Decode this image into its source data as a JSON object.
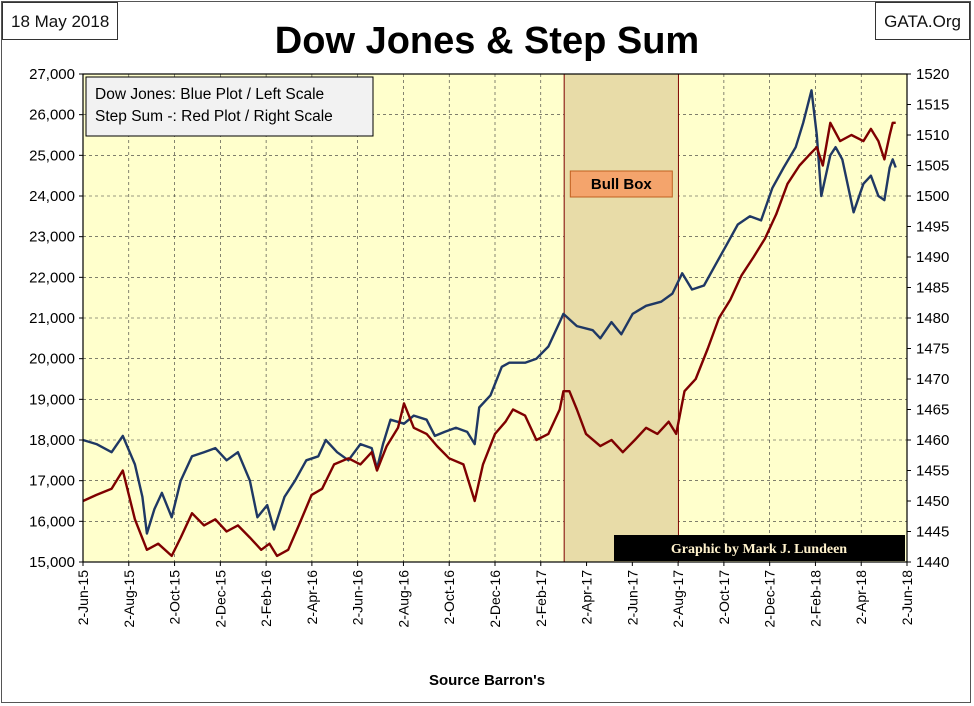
{
  "header": {
    "date": "18 May 2018",
    "source": "GATA.Org"
  },
  "chart_data": {
    "type": "line",
    "title": "Dow Jones & Step Sum",
    "xlabel": "Source Barron's",
    "ylabel_left": "",
    "ylabel_right": "",
    "legend_lines": [
      "Dow Jones: Blue Plot / Left Scale",
      "Step Sum -: Red Plot / Right Scale"
    ],
    "legend_position": "top-left",
    "grid": true,
    "background_color": "#FFFFCC",
    "x_tick_labels": [
      "2-Jun-15",
      "2-Aug-15",
      "2-Oct-15",
      "2-Dec-15",
      "2-Feb-16",
      "2-Apr-16",
      "2-Jun-16",
      "2-Aug-16",
      "2-Oct-16",
      "2-Dec-16",
      "2-Feb-17",
      "2-Apr-17",
      "2-Jun-17",
      "2-Aug-17",
      "2-Oct-17",
      "2-Dec-17",
      "2-Feb-18",
      "2-Apr-18",
      "2-Jun-18"
    ],
    "left_axis": {
      "range": [
        15000,
        27000
      ],
      "ticks": [
        "15,000",
        "16,000",
        "17,000",
        "18,000",
        "19,000",
        "20,000",
        "21,000",
        "22,000",
        "23,000",
        "24,000",
        "25,000",
        "26,000",
        "27,000"
      ]
    },
    "right_axis": {
      "range": [
        1440,
        1520
      ],
      "ticks": [
        "1440",
        "1445",
        "1450",
        "1455",
        "1460",
        "1465",
        "1470",
        "1475",
        "1480",
        "1485",
        "1490",
        "1495",
        "1500",
        "1505",
        "1510",
        "1515",
        "1520"
      ]
    },
    "series": [
      {
        "name": "Dow Jones",
        "axis": "left",
        "color": "#1F3864",
        "points": [
          [
            "2015-06-02",
            18000
          ],
          [
            "2015-06-20",
            17900
          ],
          [
            "2015-07-10",
            17700
          ],
          [
            "2015-07-25",
            18100
          ],
          [
            "2015-08-10",
            17400
          ],
          [
            "2015-08-20",
            16600
          ],
          [
            "2015-08-26",
            15700
          ],
          [
            "2015-09-05",
            16300
          ],
          [
            "2015-09-15",
            16700
          ],
          [
            "2015-09-28",
            16100
          ],
          [
            "2015-10-10",
            17000
          ],
          [
            "2015-10-25",
            17600
          ],
          [
            "2015-11-10",
            17700
          ],
          [
            "2015-11-25",
            17800
          ],
          [
            "2015-12-10",
            17500
          ],
          [
            "2015-12-25",
            17700
          ],
          [
            "2016-01-10",
            17000
          ],
          [
            "2016-01-20",
            16100
          ],
          [
            "2016-02-02",
            16400
          ],
          [
            "2016-02-11",
            15800
          ],
          [
            "2016-02-25",
            16600
          ],
          [
            "2016-03-10",
            17000
          ],
          [
            "2016-03-25",
            17500
          ],
          [
            "2016-04-10",
            17600
          ],
          [
            "2016-04-20",
            18000
          ],
          [
            "2016-05-05",
            17700
          ],
          [
            "2016-05-20",
            17500
          ],
          [
            "2016-06-05",
            17900
          ],
          [
            "2016-06-20",
            17800
          ],
          [
            "2016-06-27",
            17300
          ],
          [
            "2016-07-05",
            17900
          ],
          [
            "2016-07-15",
            18500
          ],
          [
            "2016-08-02",
            18400
          ],
          [
            "2016-08-15",
            18600
          ],
          [
            "2016-09-01",
            18500
          ],
          [
            "2016-09-12",
            18100
          ],
          [
            "2016-09-25",
            18200
          ],
          [
            "2016-10-10",
            18300
          ],
          [
            "2016-10-25",
            18200
          ],
          [
            "2016-11-04",
            17900
          ],
          [
            "2016-11-10",
            18800
          ],
          [
            "2016-11-25",
            19100
          ],
          [
            "2016-12-10",
            19800
          ],
          [
            "2016-12-20",
            19900
          ],
          [
            "2017-01-10",
            19900
          ],
          [
            "2017-01-25",
            20000
          ],
          [
            "2017-02-10",
            20300
          ],
          [
            "2017-02-25",
            20900
          ],
          [
            "2017-03-02",
            21100
          ],
          [
            "2017-03-20",
            20800
          ],
          [
            "2017-04-10",
            20700
          ],
          [
            "2017-04-20",
            20500
          ],
          [
            "2017-05-05",
            20900
          ],
          [
            "2017-05-18",
            20600
          ],
          [
            "2017-06-02",
            21100
          ],
          [
            "2017-06-20",
            21300
          ],
          [
            "2017-07-10",
            21400
          ],
          [
            "2017-07-25",
            21600
          ],
          [
            "2017-08-07",
            22100
          ],
          [
            "2017-08-20",
            21700
          ],
          [
            "2017-09-05",
            21800
          ],
          [
            "2017-09-20",
            22300
          ],
          [
            "2017-10-05",
            22800
          ],
          [
            "2017-10-20",
            23300
          ],
          [
            "2017-11-05",
            23500
          ],
          [
            "2017-11-20",
            23400
          ],
          [
            "2017-12-05",
            24200
          ],
          [
            "2017-12-20",
            24700
          ],
          [
            "2018-01-05",
            25200
          ],
          [
            "2018-01-15",
            25800
          ],
          [
            "2018-01-26",
            26600
          ],
          [
            "2018-02-02",
            25500
          ],
          [
            "2018-02-08",
            24000
          ],
          [
            "2018-02-20",
            25000
          ],
          [
            "2018-02-27",
            25200
          ],
          [
            "2018-03-08",
            24900
          ],
          [
            "2018-03-23",
            23600
          ],
          [
            "2018-04-05",
            24300
          ],
          [
            "2018-04-15",
            24500
          ],
          [
            "2018-04-25",
            24000
          ],
          [
            "2018-05-03",
            23900
          ],
          [
            "2018-05-10",
            24700
          ],
          [
            "2018-05-14",
            24900
          ],
          [
            "2018-05-18",
            24700
          ]
        ]
      },
      {
        "name": "Step Sum -",
        "axis": "right",
        "color": "#7F0000",
        "points": [
          [
            "2015-06-02",
            1450
          ],
          [
            "2015-06-20",
            1451
          ],
          [
            "2015-07-10",
            1452
          ],
          [
            "2015-07-25",
            1455
          ],
          [
            "2015-08-10",
            1447
          ],
          [
            "2015-08-26",
            1442
          ],
          [
            "2015-09-10",
            1443
          ],
          [
            "2015-09-28",
            1441
          ],
          [
            "2015-10-10",
            1444
          ],
          [
            "2015-10-25",
            1448
          ],
          [
            "2015-11-10",
            1446
          ],
          [
            "2015-11-25",
            1447
          ],
          [
            "2015-12-10",
            1445
          ],
          [
            "2015-12-25",
            1446
          ],
          [
            "2016-01-10",
            1444
          ],
          [
            "2016-01-25",
            1442
          ],
          [
            "2016-02-05",
            1443
          ],
          [
            "2016-02-15",
            1441
          ],
          [
            "2016-03-01",
            1442
          ],
          [
            "2016-03-15",
            1446
          ],
          [
            "2016-04-01",
            1451
          ],
          [
            "2016-04-15",
            1452
          ],
          [
            "2016-05-01",
            1456
          ],
          [
            "2016-05-20",
            1457
          ],
          [
            "2016-06-05",
            1456
          ],
          [
            "2016-06-20",
            1458
          ],
          [
            "2016-06-27",
            1455
          ],
          [
            "2016-07-10",
            1459
          ],
          [
            "2016-07-25",
            1462
          ],
          [
            "2016-08-02",
            1466
          ],
          [
            "2016-08-15",
            1462
          ],
          [
            "2016-09-01",
            1461
          ],
          [
            "2016-09-15",
            1459
          ],
          [
            "2016-10-01",
            1457
          ],
          [
            "2016-10-20",
            1456
          ],
          [
            "2016-11-04",
            1450
          ],
          [
            "2016-11-15",
            1456
          ],
          [
            "2016-12-01",
            1461
          ],
          [
            "2016-12-15",
            1463
          ],
          [
            "2016-12-25",
            1465
          ],
          [
            "2017-01-10",
            1464
          ],
          [
            "2017-01-25",
            1460
          ],
          [
            "2017-02-10",
            1461
          ],
          [
            "2017-02-25",
            1465
          ],
          [
            "2017-03-02",
            1468
          ],
          [
            "2017-03-10",
            1468
          ],
          [
            "2017-03-20",
            1465
          ],
          [
            "2017-04-01",
            1461
          ],
          [
            "2017-04-20",
            1459
          ],
          [
            "2017-05-05",
            1460
          ],
          [
            "2017-05-20",
            1458
          ],
          [
            "2017-06-05",
            1460
          ],
          [
            "2017-06-20",
            1462
          ],
          [
            "2017-07-05",
            1461
          ],
          [
            "2017-07-20",
            1463
          ],
          [
            "2017-07-30",
            1461
          ],
          [
            "2017-08-10",
            1468
          ],
          [
            "2017-08-25",
            1470
          ],
          [
            "2017-09-10",
            1475
          ],
          [
            "2017-09-25",
            1480
          ],
          [
            "2017-10-10",
            1483
          ],
          [
            "2017-10-25",
            1487
          ],
          [
            "2017-11-10",
            1490
          ],
          [
            "2017-11-25",
            1493
          ],
          [
            "2017-12-10",
            1497
          ],
          [
            "2017-12-25",
            1502
          ],
          [
            "2018-01-10",
            1505
          ],
          [
            "2018-01-25",
            1507
          ],
          [
            "2018-02-02",
            1508
          ],
          [
            "2018-02-10",
            1505
          ],
          [
            "2018-02-20",
            1512
          ],
          [
            "2018-03-05",
            1509
          ],
          [
            "2018-03-20",
            1510
          ],
          [
            "2018-04-05",
            1509
          ],
          [
            "2018-04-15",
            1511
          ],
          [
            "2018-04-25",
            1509
          ],
          [
            "2018-05-03",
            1506
          ],
          [
            "2018-05-10",
            1510
          ],
          [
            "2018-05-14",
            1512
          ],
          [
            "2018-05-18",
            1512
          ]
        ]
      }
    ],
    "annotations": [
      {
        "label": "Bull Box",
        "x_start": "2017-03-03",
        "x_end": "2017-08-02"
      },
      {
        "label": "Graphic by Mark J. Lundeen"
      }
    ]
  }
}
